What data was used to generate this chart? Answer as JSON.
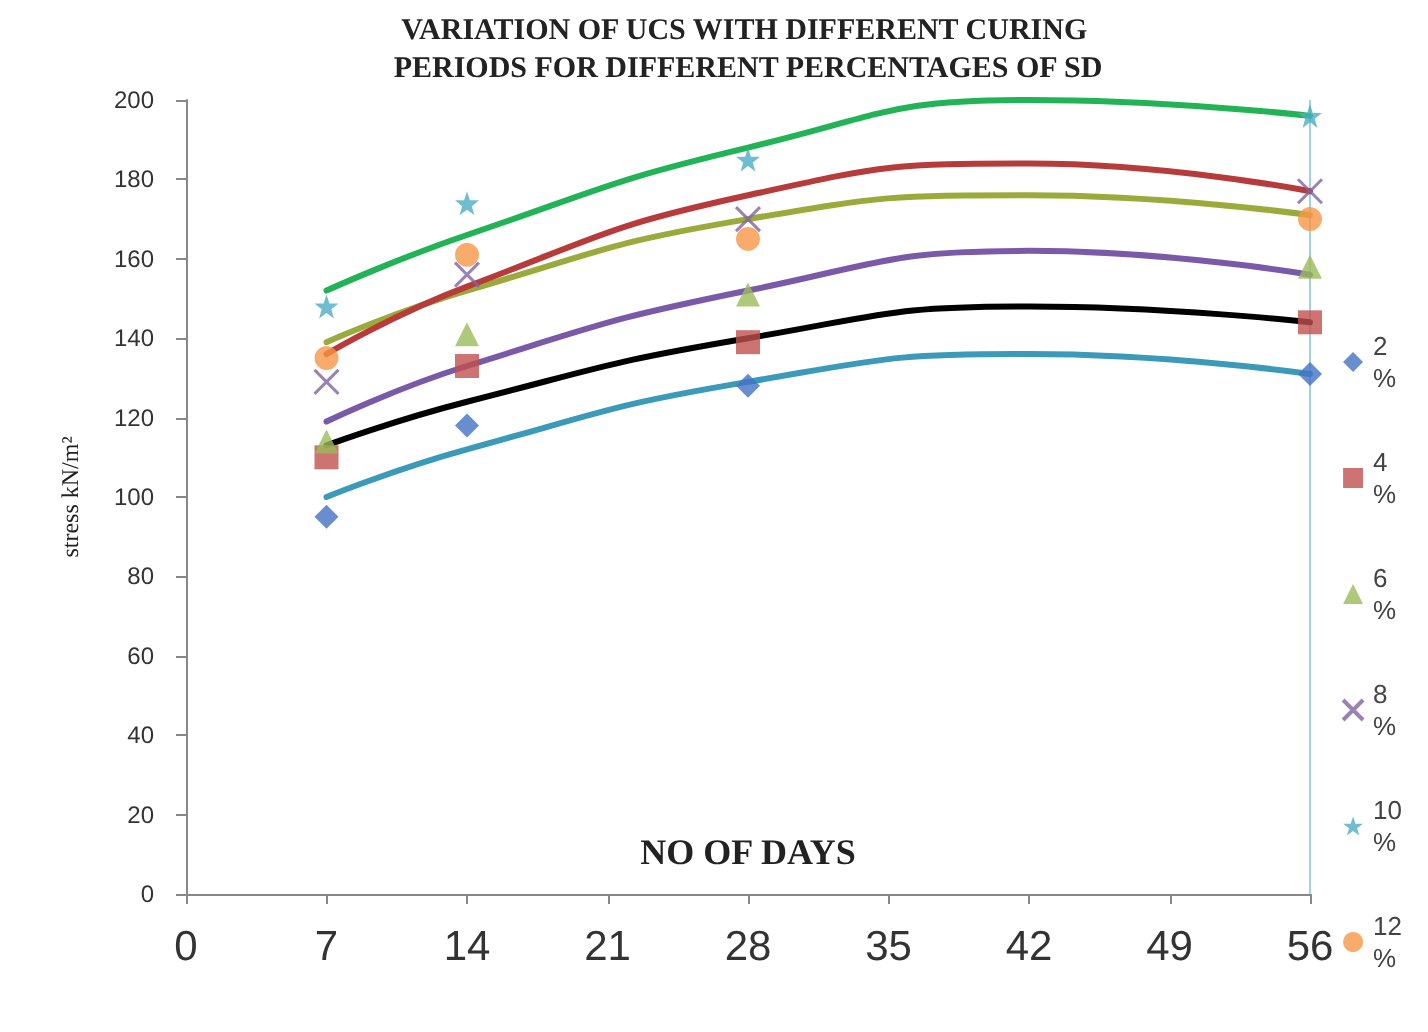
{
  "chart_data": {
    "type": "scatter",
    "title": "VARIATION OF UCS WITH DIFFERENT CURING PERIODS FOR DIFFERENT PERCENTAGES OF SD",
    "xlabel": "NO OF DAYS",
    "ylabel": "stress kN/m²",
    "x": [
      7,
      14,
      28,
      56
    ],
    "series": [
      {
        "name": "2 %",
        "color": "#4472c4",
        "marker": "diamond",
        "values": [
          95,
          118,
          128,
          131
        ]
      },
      {
        "name": "4 %",
        "color": "#c0504d",
        "marker": "square",
        "values": [
          110,
          133,
          139,
          144
        ]
      },
      {
        "name": "6 %",
        "color": "#9bbb59",
        "marker": "triangle",
        "values": [
          114,
          141,
          151,
          158
        ]
      },
      {
        "name": "8 %",
        "color": "#8064a2",
        "marker": "cross",
        "values": [
          129,
          156,
          170,
          177
        ]
      },
      {
        "name": "10 %",
        "color": "#4bacc6",
        "marker": "star",
        "values": [
          148,
          174,
          185,
          196
        ]
      },
      {
        "name": "12 %",
        "color": "#f79646",
        "marker": "circle",
        "values": [
          135,
          161,
          165,
          170
        ]
      },
      {
        "type": "line",
        "color": "#3a9ab8",
        "x": [
          7,
          14,
          28,
          42,
          56
        ],
        "values": [
          100,
          112,
          129,
          136,
          131
        ]
      },
      {
        "type": "line",
        "color": "#000000",
        "x": [
          7,
          14,
          28,
          42,
          56
        ],
        "values": [
          113,
          124,
          140,
          148,
          144
        ]
      },
      {
        "type": "line",
        "color": "#7a5aa8",
        "x": [
          7,
          14,
          28,
          42,
          56
        ],
        "values": [
          119,
          133,
          152,
          162,
          156
        ]
      },
      {
        "type": "line",
        "color": "#9aab3c",
        "x": [
          7,
          14,
          28,
          42,
          56
        ],
        "values": [
          139,
          152,
          170,
          176,
          171
        ]
      },
      {
        "type": "line",
        "color": "#b83b3b",
        "x": [
          7,
          14,
          28,
          42,
          56
        ],
        "values": [
          136,
          153,
          176,
          184,
          177
        ]
      },
      {
        "type": "line",
        "color": "#22b357",
        "x": [
          7,
          14,
          28,
          42,
          56
        ],
        "values": [
          152,
          166,
          188,
          200,
          196
        ]
      }
    ],
    "xlim": [
      0,
      56
    ],
    "xticks": [
      0,
      7,
      14,
      21,
      28,
      35,
      42,
      49,
      56
    ],
    "ylim": [
      0,
      200
    ],
    "yticks": [
      0,
      20,
      40,
      60,
      80,
      100,
      120,
      140,
      160,
      180,
      200
    ],
    "grid": false,
    "legend": "right"
  }
}
